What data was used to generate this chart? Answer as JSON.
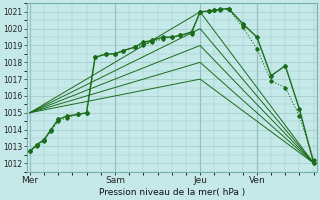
{
  "title": "Pression niveau de la mer( hPa )",
  "background_color": "#c5e8e8",
  "grid_color": "#a0c8c8",
  "line_color": "#1a6b1a",
  "vline_color": "#7aafaf",
  "ylim": [
    1011.5,
    1021.5
  ],
  "yticks": [
    1012,
    1013,
    1014,
    1015,
    1016,
    1017,
    1018,
    1019,
    1020,
    1021
  ],
  "xtick_labels": [
    "Mer",
    "Sam",
    "Jeu",
    "Ven"
  ],
  "xtick_positions": [
    0,
    3,
    6,
    8
  ],
  "xlim": [
    -0.1,
    10.1
  ],
  "main_line_x": [
    0,
    0.25,
    0.5,
    0.75,
    1.0,
    1.3,
    1.7,
    2.0,
    2.3,
    2.7,
    3.0,
    3.3,
    3.7,
    4.0,
    4.3,
    4.7,
    5.0,
    5.3,
    5.7,
    6.0,
    6.3,
    6.5,
    6.7,
    7.0,
    7.5,
    8.0,
    8.5,
    9.0,
    9.5,
    10.0
  ],
  "main_line_y": [
    1012.7,
    1013.1,
    1013.4,
    1014.0,
    1014.6,
    1014.8,
    1014.9,
    1015.0,
    1018.3,
    1018.5,
    1018.5,
    1018.7,
    1018.9,
    1019.2,
    1019.3,
    1019.5,
    1019.5,
    1019.6,
    1019.8,
    1021.0,
    1021.05,
    1021.1,
    1021.15,
    1021.2,
    1020.3,
    1019.5,
    1017.2,
    1017.8,
    1015.2,
    1012.0
  ],
  "dotted_line_x": [
    0,
    0.25,
    0.5,
    0.75,
    1.0,
    1.3,
    1.7,
    2.0,
    2.3,
    2.7,
    3.0,
    3.3,
    3.7,
    4.0,
    4.3,
    4.7,
    5.0,
    5.3,
    5.7,
    6.0,
    6.3,
    6.5,
    6.7,
    7.0,
    7.5,
    8.0,
    8.5,
    9.0,
    9.5,
    10.0
  ],
  "dotted_line_y": [
    1012.7,
    1013.0,
    1013.3,
    1013.9,
    1014.5,
    1014.7,
    1014.9,
    1015.0,
    1018.3,
    1018.5,
    1018.5,
    1018.7,
    1018.9,
    1019.0,
    1019.2,
    1019.4,
    1019.5,
    1019.6,
    1019.7,
    1021.0,
    1021.05,
    1021.1,
    1021.1,
    1021.15,
    1020.1,
    1018.8,
    1016.9,
    1016.5,
    1014.8,
    1012.2
  ],
  "fan_lines": [
    {
      "x": [
        0.0,
        6.0,
        10.0
      ],
      "y": [
        1015.0,
        1021.0,
        1012.0
      ]
    },
    {
      "x": [
        0.0,
        6.0,
        10.0
      ],
      "y": [
        1015.0,
        1020.0,
        1012.0
      ]
    },
    {
      "x": [
        0.0,
        6.0,
        10.0
      ],
      "y": [
        1015.0,
        1019.0,
        1012.0
      ]
    },
    {
      "x": [
        0.0,
        6.0,
        10.0
      ],
      "y": [
        1015.0,
        1018.0,
        1012.0
      ]
    },
    {
      "x": [
        0.0,
        6.0,
        10.0
      ],
      "y": [
        1015.0,
        1017.0,
        1012.0
      ]
    }
  ]
}
